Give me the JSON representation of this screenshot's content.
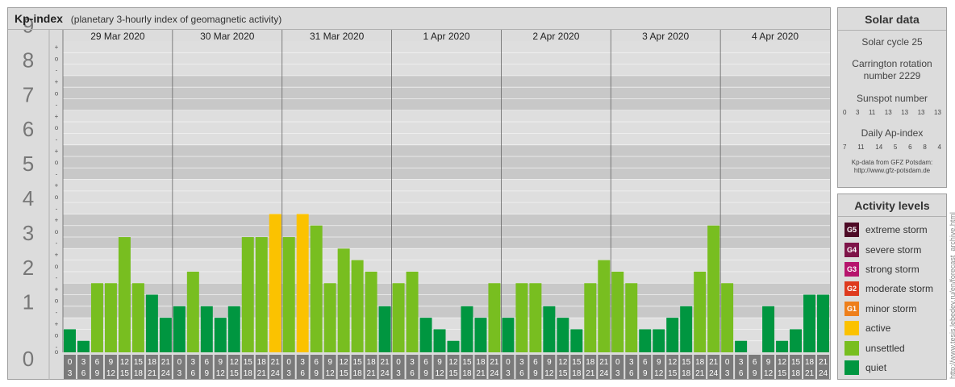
{
  "header": {
    "title": "Kp-index",
    "subtitle": "(planetary 3-hourly index of geomagnetic activity)"
  },
  "chart_data": {
    "type": "bar",
    "title": "Kp-index",
    "subtitle": "(planetary 3-hourly index of geomagnetic activity)",
    "y_ticks": [
      "0",
      "1",
      "2",
      "3",
      "4",
      "5",
      "6",
      "7",
      "8",
      "9"
    ],
    "minor_ticks": [
      "+",
      "o",
      "-"
    ],
    "ylim": [
      0,
      9
    ],
    "days": [
      "29 Mar 2020",
      "30 Mar 2020",
      "31 Mar 2020",
      "1 Apr 2020",
      "2 Apr 2020",
      "3 Apr 2020",
      "4 Apr 2020"
    ],
    "interval_start": [
      "0",
      "3",
      "6",
      "9",
      "12",
      "15",
      "18",
      "21"
    ],
    "interval_end": [
      "3",
      "6",
      "9",
      "12",
      "15",
      "18",
      "21",
      "24"
    ],
    "values": [
      0.667,
      0.333,
      2,
      2,
      3.333,
      2,
      1.667,
      1,
      1.333,
      2.333,
      1.333,
      1,
      1.333,
      3.333,
      3.333,
      4,
      3.333,
      4,
      3.667,
      2,
      3,
      2.667,
      2.333,
      1.333,
      2,
      2.333,
      1,
      0.667,
      0.333,
      1.333,
      1,
      2,
      1,
      2,
      2,
      1.333,
      1,
      0.667,
      2,
      2.667,
      2.333,
      2,
      0.667,
      0.667,
      1,
      1.333,
      2.333,
      3.667,
      2,
      0.333,
      0,
      1.333,
      0.333,
      0.667,
      1.667,
      1.667
    ],
    "level_colors": {
      "quiet": "#009640",
      "unsettled": "#78be20",
      "active": "#fbc200"
    }
  },
  "solar": {
    "title": "Solar data",
    "cycle_label": "Solar cycle 25",
    "carrington_label_1": "Carrington rotation",
    "carrington_label_2": "number 2229",
    "sunspot_label": "Sunspot number",
    "sunspot_values": [
      "0",
      "3",
      "11",
      "13",
      "13",
      "13",
      "13"
    ],
    "ap_label": "Daily Ap-index",
    "ap_values": [
      "7",
      "11",
      "14",
      "5",
      "6",
      "8",
      "4"
    ],
    "credit_1": "Kp-data from GFZ Potsdam:",
    "credit_2": "http://www.gfz-potsdam.de"
  },
  "activity": {
    "title": "Activity levels",
    "levels": [
      {
        "code": "G5",
        "label": "extreme storm",
        "color": "#4d0a25"
      },
      {
        "code": "G4",
        "label": "severe storm",
        "color": "#7e1449"
      },
      {
        "code": "G3",
        "label": "strong storm",
        "color": "#b6146d"
      },
      {
        "code": "G2",
        "label": "moderate storm",
        "color": "#de3a1e"
      },
      {
        "code": "G1",
        "label": "minor storm",
        "color": "#ee7f1b"
      },
      {
        "code": "",
        "label": "active",
        "color": "#fbc200"
      },
      {
        "code": "",
        "label": "unsettled",
        "color": "#78be20"
      },
      {
        "code": "",
        "label": "quiet",
        "color": "#009640"
      }
    ]
  },
  "watermark": "http://www.tesis.lebedev.ru/en/forecast_archive.html"
}
